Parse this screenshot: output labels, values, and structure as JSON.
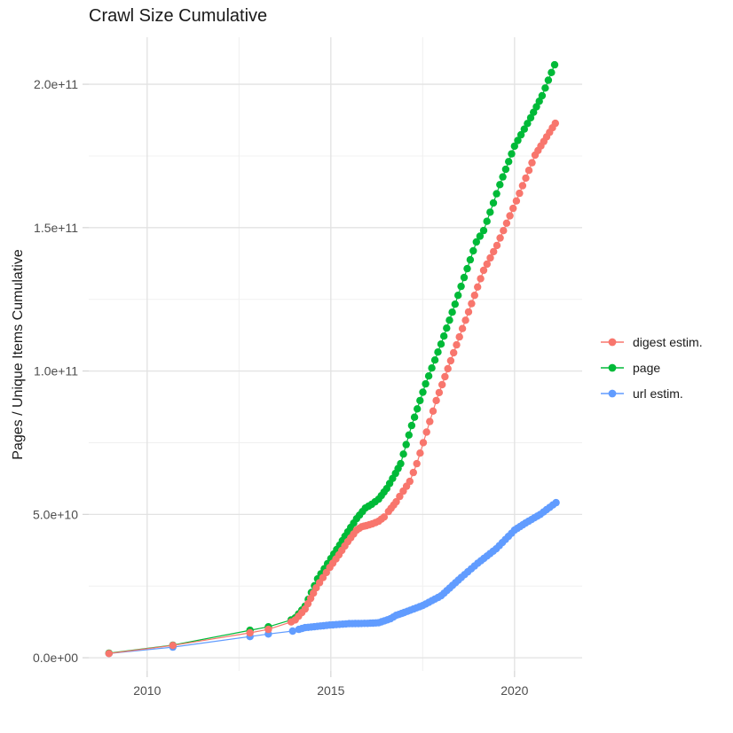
{
  "chart_data": {
    "type": "scatter",
    "title": "Crawl Size Cumulative",
    "xlabel": "",
    "ylabel": "Pages / Unique Items Cumulative",
    "x_axis": {
      "range": [
        2008.41,
        2021.84
      ],
      "major_ticks": [
        {
          "value": 2010,
          "label": "2010"
        },
        {
          "value": 2015,
          "label": "2015"
        },
        {
          "value": 2020,
          "label": "2020"
        }
      ],
      "minor_ticks": [
        2012.5,
        2017.5
      ],
      "grid": true
    },
    "y_axis": {
      "range": [
        -4600000000,
        216400000000
      ],
      "major_ticks": [
        {
          "value": 0,
          "label": "0.0e+00"
        },
        {
          "value": 50000000000,
          "label": "5.0e+10"
        },
        {
          "value": 100000000000,
          "label": "1.0e+11"
        },
        {
          "value": 150000000000,
          "label": "1.5e+11"
        },
        {
          "value": 200000000000,
          "label": "2.0e+11"
        }
      ],
      "minor_ticks": [
        25000000000,
        75000000000,
        125000000000,
        175000000000
      ],
      "grid": true
    },
    "legend": {
      "position": "right",
      "items": [
        {
          "label": "digest estim.",
          "color": "#F8766D"
        },
        {
          "label": "page",
          "color": "#00BA38"
        },
        {
          "label": "url estim.",
          "color": "#619CFF"
        }
      ]
    },
    "series": [
      {
        "name": "digest estim.",
        "color": "#F8766D",
        "points": [
          [
            2008.96,
            1500000000.0
          ],
          [
            2010.7,
            4300000000.0
          ],
          [
            2012.8,
            8700000000.0
          ],
          [
            2013.3,
            9900000000.0
          ],
          [
            2013.92,
            12500000000.0
          ],
          [
            2014.03,
            13200000000.0
          ],
          [
            2014.3,
            17000000000.0
          ],
          [
            2014.6,
            24400000000.0
          ],
          [
            2014.97,
            31500000000.0
          ],
          [
            2015.22,
            35900000000.0
          ],
          [
            2015.46,
            40500000000.0
          ],
          [
            2015.7,
            44500000000.0
          ],
          [
            2015.84,
            45700000000.0
          ],
          [
            2015.97,
            46100000000.0
          ],
          [
            2016.13,
            46700000000.0
          ],
          [
            2016.3,
            47600000000.0
          ],
          [
            2016.45,
            49100000000.0
          ],
          [
            2016.57,
            51000000000.0
          ],
          [
            2016.78,
            54400000000.0
          ],
          [
            2016.97,
            58100000000.0
          ],
          [
            2017.15,
            61500000000.0
          ],
          [
            2017.34,
            67700000000.0
          ],
          [
            2017.87,
            89700000000.0
          ],
          [
            2018.5,
            111900000000.0
          ],
          [
            2019.16,
            135100000000.0
          ],
          [
            2019.52,
            143800000000.0
          ],
          [
            2020.05,
            159300000000.0
          ],
          [
            2020.56,
            175300000000.0
          ],
          [
            2021.11,
            186400000000.0
          ]
        ]
      },
      {
        "name": "page",
        "color": "#00BA38",
        "points": [
          [
            2008.96,
            1600000000.0
          ],
          [
            2010.7,
            4400000000.0
          ],
          [
            2012.8,
            9600000000.0
          ],
          [
            2013.3,
            10800000000.0
          ],
          [
            2013.92,
            13200000000.0
          ],
          [
            2014.03,
            13900000000.0
          ],
          [
            2014.3,
            18000000000.0
          ],
          [
            2014.64,
            27500000000.0
          ],
          [
            2015.0,
            34600000000.0
          ],
          [
            2015.24,
            39300000000.0
          ],
          [
            2015.46,
            43900000000.0
          ],
          [
            2015.7,
            48500000000.0
          ],
          [
            2015.94,
            52200000000.0
          ],
          [
            2016.11,
            53500000000.0
          ],
          [
            2016.3,
            55300000000.0
          ],
          [
            2016.52,
            59000000000.0
          ],
          [
            2016.76,
            64300000000.0
          ],
          [
            2016.9,
            67700000000.0
          ],
          [
            2017.2,
            81000000000.0
          ],
          [
            2017.58,
            95500000000.0
          ],
          [
            2018.0,
            109400000000.0
          ],
          [
            2018.38,
            123300000000.0
          ],
          [
            2018.96,
            145000000000.0
          ],
          [
            2019.16,
            149000000000.0
          ],
          [
            2019.6,
            165000000000.0
          ],
          [
            2020.0,
            178400000000.0
          ],
          [
            2020.44,
            188300000000.0
          ],
          [
            2020.75,
            196000000000.0
          ],
          [
            2021.09,
            206800000000.0
          ]
        ]
      },
      {
        "name": "url estim.",
        "color": "#619CFF",
        "points": [
          [
            2008.96,
            1500000000.0
          ],
          [
            2010.7,
            3700000000.0
          ],
          [
            2012.8,
            7400000000.0
          ],
          [
            2013.3,
            8300000000.0
          ],
          [
            2013.96,
            9300000000.0
          ],
          [
            2014.13,
            9900000000.0
          ],
          [
            2014.3,
            10500000000.0
          ],
          [
            2014.97,
            11400000000.0
          ],
          [
            2015.5,
            11900000000.0
          ],
          [
            2016.0,
            12000000000.0
          ],
          [
            2016.3,
            12200000000.0
          ],
          [
            2016.62,
            13600000000.0
          ],
          [
            2016.78,
            14800000000.0
          ],
          [
            2017.0,
            15800000000.0
          ],
          [
            2017.5,
            18200000000.0
          ],
          [
            2018.0,
            21600000000.0
          ],
          [
            2018.55,
            28000000000.0
          ],
          [
            2019.0,
            33000000000.0
          ],
          [
            2019.5,
            38000000000.0
          ],
          [
            2020.0,
            44500000000.0
          ],
          [
            2020.3,
            47000000000.0
          ],
          [
            2020.7,
            50000000000.0
          ],
          [
            2021.13,
            54100000000.0
          ]
        ]
      }
    ],
    "render": {
      "dense_from": 2014.0,
      "dot_step_years": 0.0833,
      "draw_order": [
        "url estim.",
        "page",
        "digest estim."
      ],
      "point_radius": 4.2,
      "line_width": 1.2
    }
  },
  "styles": {
    "background": "#FFFFFF",
    "grid_major": "#E2E2E2",
    "grid_minor": "#F0F0F0",
    "tick_mark": "#D5D5D5",
    "tick_label": "#4D4D4D",
    "title_color": "#1A1A1A"
  }
}
